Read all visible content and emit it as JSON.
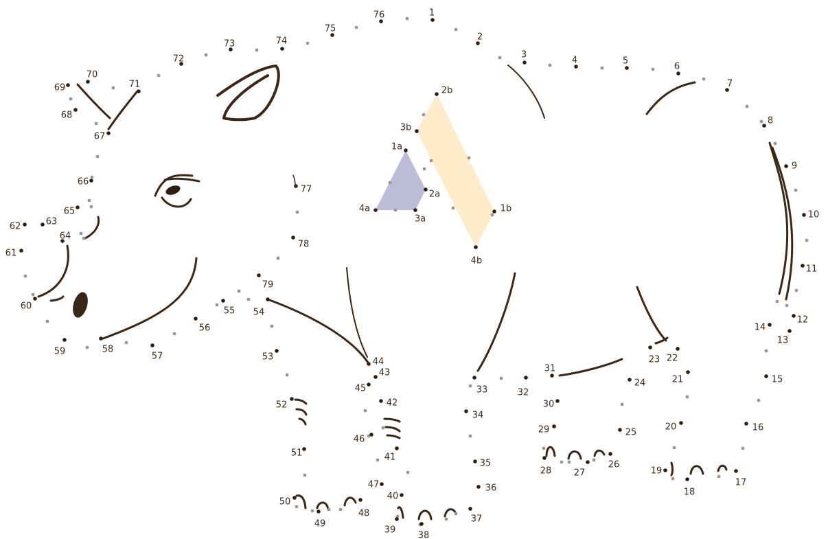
{
  "game": {
    "type": "connect-the-dots",
    "colors": {
      "dot": "#2e1d10",
      "minor_dot": "#9a9590",
      "label": "#3a2a1c",
      "line_art": "#3b2716",
      "triangle_fill": "#bcbcd8",
      "parallelogram_fill": "#fdebc9"
    },
    "main_dot_labels": [
      "1",
      "2",
      "3",
      "4",
      "5",
      "6",
      "7",
      "8",
      "9",
      "10",
      "11",
      "12",
      "13",
      "14",
      "15",
      "16",
      "17",
      "18",
      "19",
      "20",
      "21",
      "22",
      "23",
      "24",
      "25",
      "26",
      "27",
      "28",
      "29",
      "30",
      "31",
      "32",
      "33",
      "34",
      "35",
      "36",
      "37",
      "38",
      "39",
      "40",
      "41",
      "42",
      "43",
      "44",
      "45",
      "46",
      "47",
      "48",
      "49",
      "50",
      "51",
      "52",
      "53",
      "54",
      "55",
      "56",
      "57",
      "58",
      "59",
      "60",
      "61",
      "62",
      "63",
      "64",
      "65",
      "66",
      "67",
      "68",
      "69",
      "70",
      "71",
      "72",
      "73",
      "74",
      "75",
      "76",
      "77",
      "78",
      "79"
    ],
    "triangle_labels": [
      "1a",
      "2a",
      "3a",
      "4a"
    ],
    "parallelogram_labels": [
      "1b",
      "2b",
      "3b",
      "4b"
    ]
  }
}
